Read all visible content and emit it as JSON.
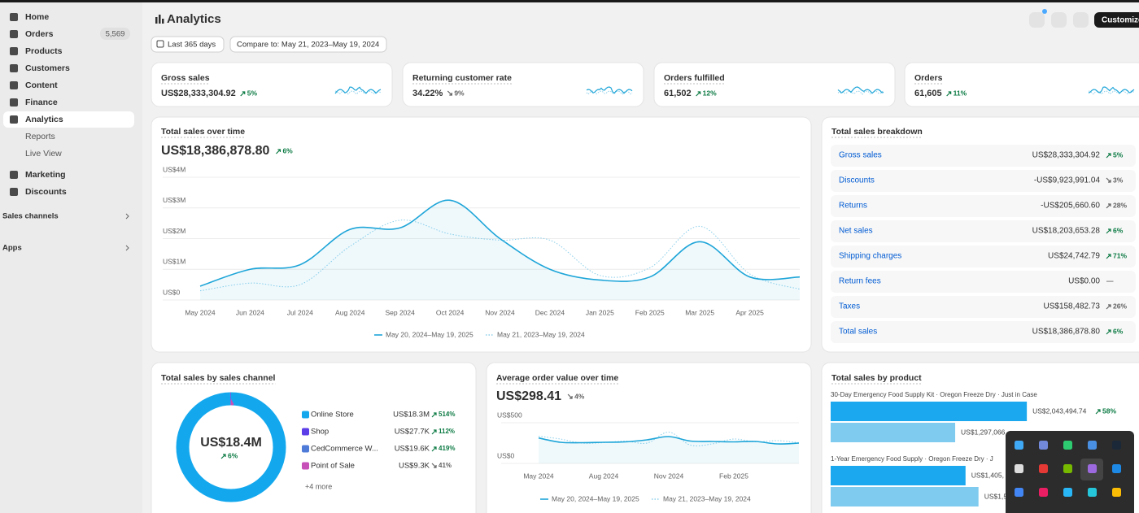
{
  "sidebar": {
    "items": [
      {
        "label": "Home"
      },
      {
        "label": "Orders",
        "badge": "5,569"
      },
      {
        "label": "Products"
      },
      {
        "label": "Customers"
      },
      {
        "label": "Content"
      },
      {
        "label": "Finance"
      },
      {
        "label": "Analytics",
        "active": true
      },
      {
        "label": "Reports",
        "sub": true
      },
      {
        "label": "Live View",
        "sub": true
      },
      {
        "label": "Marketing"
      },
      {
        "label": "Discounts"
      }
    ],
    "sections": [
      "Sales channels",
      "Apps"
    ]
  },
  "header": {
    "title": "Analytics",
    "customize": "Customize"
  },
  "filters": {
    "range": "Last 365 days",
    "compare": "Compare to: May 21, 2023–May 19, 2024"
  },
  "kpis": [
    {
      "title": "Gross sales",
      "value": "US$28,333,304.92",
      "change": "5%",
      "trend": "up",
      "positive": true
    },
    {
      "title": "Returning customer rate",
      "value": "34.22%",
      "change": "9%",
      "trend": "down",
      "positive": false
    },
    {
      "title": "Orders fulfilled",
      "value": "61,502",
      "change": "12%",
      "trend": "up",
      "positive": true
    },
    {
      "title": "Orders",
      "value": "61,605",
      "change": "11%",
      "trend": "up",
      "positive": true
    }
  ],
  "sales_over_time": {
    "type": "line",
    "title": "Total sales over time",
    "total": "US$18,386,878.80",
    "change": "6%",
    "trend": "up",
    "positive": true,
    "categories": [
      "May 2024",
      "Jun 2024",
      "Jul 2024",
      "Aug 2024",
      "Sep 2024",
      "Oct 2024",
      "Nov 2024",
      "Dec 2024",
      "Jan 2025",
      "Feb 2025",
      "Mar 2025",
      "Apr 2025",
      null
    ],
    "series": [
      {
        "name": "May 20, 2024–May 19, 2025",
        "color": "#1ea5d8",
        "values": [
          450000,
          1000000,
          1150000,
          2300000,
          2350000,
          3250000,
          2000000,
          1000000,
          650000,
          750000,
          1900000,
          750000,
          750000
        ]
      },
      {
        "name": "May 21, 2023–May 19, 2024",
        "color": "#8ccfea",
        "dashed": true,
        "values": [
          300000,
          550000,
          500000,
          1750000,
          2600000,
          2150000,
          1950000,
          1950000,
          800000,
          1050000,
          2400000,
          850000,
          350000
        ]
      }
    ],
    "ylim": [
      0,
      4000000
    ],
    "yticks": [
      {
        "value": 0,
        "label": "US$0"
      },
      {
        "value": 1000000,
        "label": "US$1M"
      },
      {
        "value": 2000000,
        "label": "US$2M"
      },
      {
        "value": 3000000,
        "label": "US$3M"
      },
      {
        "value": 4000000,
        "label": "US$4M"
      }
    ]
  },
  "breakdown": {
    "title": "Total sales breakdown",
    "rows": [
      {
        "label": "Gross sales",
        "value": "US$28,333,304.92",
        "change": "5%",
        "trend": "up",
        "positive": true
      },
      {
        "label": "Discounts",
        "value": "-US$9,923,991.04",
        "change": "3%",
        "trend": "down",
        "positive": false
      },
      {
        "label": "Returns",
        "value": "-US$205,660.60",
        "change": "28%",
        "trend": "up",
        "positive": false
      },
      {
        "label": "Net sales",
        "value": "US$18,203,653.28",
        "change": "6%",
        "trend": "up",
        "positive": true
      },
      {
        "label": "Shipping charges",
        "value": "US$24,742.79",
        "change": "71%",
        "trend": "up",
        "positive": true
      },
      {
        "label": "Return fees",
        "value": "US$0.00",
        "change": "—"
      },
      {
        "label": "Taxes",
        "value": "US$158,482.73",
        "change": "26%",
        "trend": "up",
        "positive": false
      },
      {
        "label": "Total sales",
        "value": "US$18,386,878.80",
        "change": "6%",
        "trend": "up",
        "positive": true
      }
    ]
  },
  "by_channel": {
    "type": "pie",
    "title": "Total sales by sales channel",
    "center_value": "US$18.4M",
    "center_change": "6%",
    "center_trend": "up",
    "series": [
      {
        "name": "Online Store",
        "color": "#13a8ee",
        "value": 18300000,
        "value_label": "US$18.3M",
        "change": "514%",
        "trend": "up",
        "positive": true
      },
      {
        "name": "Shop",
        "color": "#5c3ee8",
        "value": 27700,
        "value_label": "US$27.7K",
        "change": "112%",
        "trend": "up",
        "positive": true
      },
      {
        "name": "CedCommerce W...",
        "color": "#4f7bd8",
        "value": 19600,
        "value_label": "US$19.6K",
        "change": "419%",
        "trend": "up",
        "positive": true
      },
      {
        "name": "Point of Sale",
        "color": "#c64fb8",
        "value": 9300,
        "value_label": "US$9.3K",
        "change": "41%",
        "trend": "down",
        "positive": false
      }
    ],
    "more": "+4 more"
  },
  "aov": {
    "type": "line",
    "title": "Average order value over time",
    "total": "US$298.41",
    "change": "4%",
    "trend": "down",
    "positive": false,
    "categories": [
      "May 2024",
      null,
      null,
      "Aug 2024",
      null,
      null,
      "Nov 2024",
      null,
      null,
      "Feb 2025",
      null,
      null,
      null
    ],
    "series": [
      {
        "name": "May 20, 2024–May 19, 2025",
        "color": "#1ea5d8",
        "values": [
          313,
          260,
          255,
          260,
          265,
          290,
          330,
          275,
          270,
          265,
          270,
          240,
          250
        ]
      },
      {
        "name": "May 21, 2023–May 19, 2024",
        "color": "#8ccfea",
        "dashed": true,
        "values": [
          335,
          300,
          250,
          255,
          275,
          250,
          385,
          225,
          240,
          300,
          265,
          280,
          255
        ]
      }
    ],
    "ylim": [
      0,
      500
    ],
    "yticks": [
      {
        "value": 0,
        "label": "US$0"
      },
      {
        "value": 500,
        "label": "US$500"
      }
    ]
  },
  "by_product": {
    "type": "bar",
    "title": "Total sales by product",
    "xlim": [
      0,
      2500000
    ],
    "colors": [
      "#1ba8ee",
      "#7fcbef"
    ],
    "products": [
      {
        "name": "30-Day Emergency Food Supply Kit · Oregon Freeze Dry · Just in Case",
        "values": [
          2043494.74,
          1297066
        ],
        "value_labels": [
          "US$2,043,494.74",
          "US$1,297,066"
        ],
        "change": "58%",
        "trend": "up",
        "positive": true
      },
      {
        "name": "1-Year Emergency Food Supply · Oregon Freeze Dry · J",
        "values": [
          1405000,
          1540000
        ],
        "value_labels": [
          "US$1,405,",
          "US$1,5"
        ]
      }
    ]
  }
}
